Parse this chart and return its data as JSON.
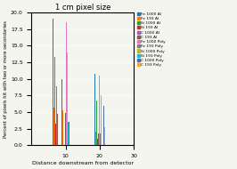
{
  "title": "1 cm pixel size",
  "xlabel": "Distance downstream from detector",
  "ylabel": "Percent of pixels hit with two or more secondaries",
  "ylim": [
    0,
    20
  ],
  "xlim": [
    0,
    30
  ],
  "x_ticks": [
    10,
    20,
    30
  ],
  "group_positions": [
    7,
    10,
    20
  ],
  "group_data": [
    [
      19.0,
      5.7,
      13.3,
      3.3,
      8.9,
      4.7,
      0,
      0,
      0,
      0,
      0,
      0
    ],
    [
      10.0,
      5.2,
      0,
      0,
      3.4,
      4.8,
      18.5,
      0,
      14.0,
      3.5,
      3.5,
      0
    ],
    [
      10.8,
      2.0,
      6.7,
      1.0,
      0,
      1.8,
      10.5,
      1.8,
      7.6,
      1.5,
      5.9,
      2.7
    ]
  ],
  "series": [
    {
      "label": "Fe 1000 Al",
      "color": "#1f77b4"
    },
    {
      "label": "Fe 193 Al",
      "color": "#ff7f0e"
    },
    {
      "label": "Si 1000 Al",
      "color": "#2ca02c"
    },
    {
      "label": "Si 193 Al",
      "color": "#d62728"
    },
    {
      "label": "C 1000 Al",
      "color": "#9467bd"
    },
    {
      "label": "C 193 Al",
      "color": "#8c564b"
    },
    {
      "label": "Fe 1000 Poly",
      "color": "#e377c2"
    },
    {
      "label": "Fe 193 Poly",
      "color": "#7f7f7f"
    },
    {
      "label": "Si 1000 Poly",
      "color": "#bcbd22"
    },
    {
      "label": "Si 193 Poly",
      "color": "#17becf"
    },
    {
      "label": "C 1000 Poly",
      "color": "#4a6fa5"
    },
    {
      "label": "C 193 Poly",
      "color": "#f5a623"
    }
  ],
  "background_color": "#f5f5f0",
  "plot_bg_color": "#f5f5f0",
  "title_fontsize": 6,
  "label_fontsize": 4.5,
  "tick_fontsize": 4.5,
  "legend_fontsize": 3.2
}
